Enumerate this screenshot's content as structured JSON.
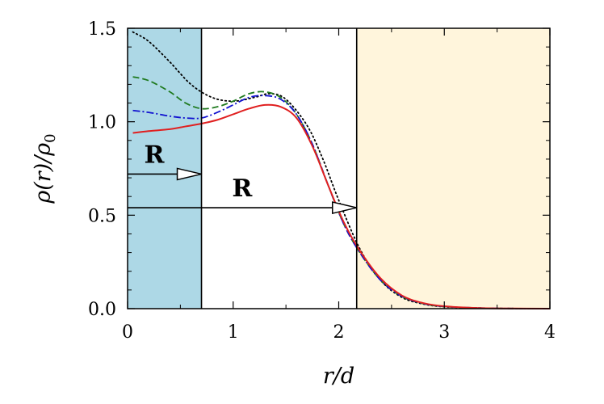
{
  "chart_data": {
    "type": "line",
    "xlabel": "r/d",
    "ylabel": "ρ(r)/ρ0",
    "xlim": [
      0,
      4
    ],
    "ylim": [
      0,
      1.5
    ],
    "x_ticks": [
      "0",
      "1",
      "2",
      "3",
      "4"
    ],
    "y_ticks": [
      "0.0",
      "0.5",
      "1.0",
      "1.5"
    ],
    "grid": false,
    "regions": [
      {
        "x_from": 0,
        "x_to": 0.7,
        "color": "#add8e6"
      },
      {
        "x_from": 2.17,
        "x_to": 4,
        "color": "#fff5dc"
      }
    ],
    "arrows": [
      {
        "label": "R",
        "from_x": 0,
        "to_x": 0.7,
        "y": 0.72
      },
      {
        "label": "R",
        "from_x": 0,
        "to_x": 2.17,
        "y": 0.54
      }
    ],
    "series": [
      {
        "style": "dotted",
        "color": "#000000",
        "x": [
          0.05,
          0.2,
          0.4,
          0.6,
          0.8,
          1.0,
          1.2,
          1.35,
          1.5,
          1.7,
          1.85,
          2.0,
          2.2,
          2.4,
          2.6,
          2.8,
          3.0,
          3.3,
          3.6,
          4.0
        ],
        "y": [
          1.48,
          1.43,
          1.32,
          1.2,
          1.13,
          1.11,
          1.13,
          1.15,
          1.12,
          0.98,
          0.8,
          0.58,
          0.32,
          0.15,
          0.06,
          0.025,
          0.01,
          0.004,
          0.001,
          0.0
        ]
      },
      {
        "style": "dashed",
        "color": "#1f7a1f",
        "x": [
          0.05,
          0.2,
          0.4,
          0.55,
          0.7,
          0.85,
          1.0,
          1.15,
          1.3,
          1.45,
          1.6,
          1.75,
          1.9,
          2.05,
          2.2,
          2.4,
          2.6,
          2.8,
          3.0,
          3.3,
          3.6,
          4.0
        ],
        "y": [
          1.24,
          1.22,
          1.16,
          1.1,
          1.07,
          1.08,
          1.11,
          1.15,
          1.16,
          1.13,
          1.04,
          0.88,
          0.66,
          0.45,
          0.3,
          0.15,
          0.065,
          0.027,
          0.011,
          0.004,
          0.001,
          0.0
        ]
      },
      {
        "style": "dashdot",
        "color": "#1010d0",
        "x": [
          0.05,
          0.2,
          0.4,
          0.55,
          0.7,
          0.85,
          1.0,
          1.15,
          1.3,
          1.45,
          1.6,
          1.75,
          1.9,
          2.05,
          2.2,
          2.4,
          2.6,
          2.8,
          3.0,
          3.3,
          3.6,
          4.0
        ],
        "y": [
          1.06,
          1.05,
          1.03,
          1.02,
          1.02,
          1.05,
          1.09,
          1.13,
          1.14,
          1.12,
          1.04,
          0.88,
          0.66,
          0.45,
          0.3,
          0.15,
          0.066,
          0.028,
          0.012,
          0.004,
          0.001,
          0.0
        ]
      },
      {
        "style": "solid",
        "color": "#e02020",
        "x": [
          0.05,
          0.2,
          0.4,
          0.55,
          0.7,
          0.85,
          1.0,
          1.15,
          1.3,
          1.45,
          1.6,
          1.75,
          1.9,
          2.05,
          2.2,
          2.4,
          2.6,
          2.8,
          3.0,
          3.3,
          3.6,
          4.0
        ],
        "y": [
          0.94,
          0.95,
          0.96,
          0.975,
          0.99,
          1.01,
          1.04,
          1.07,
          1.09,
          1.08,
          1.02,
          0.87,
          0.66,
          0.46,
          0.31,
          0.16,
          0.07,
          0.03,
          0.013,
          0.004,
          0.001,
          0.0
        ]
      }
    ]
  }
}
